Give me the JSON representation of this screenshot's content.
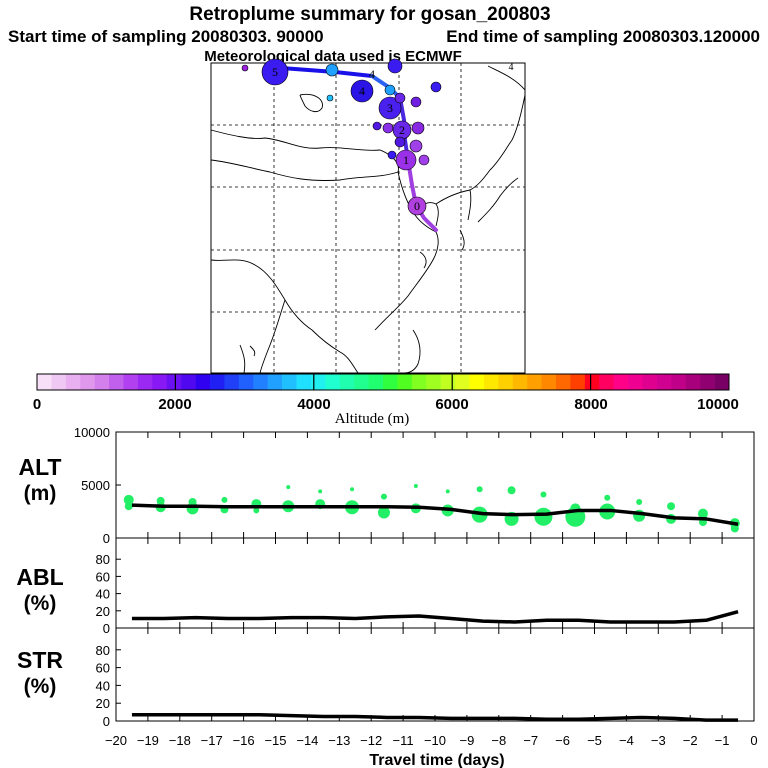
{
  "header": {
    "title": "Retroplume summary for gosan_200803",
    "start_label": "Start time of sampling 20080303. 90000",
    "end_label": "End time of sampling 20080303.120000",
    "met_label": "Meteorological data used is ECMWF"
  },
  "map": {
    "stray_label": "4",
    "plume_points": [
      {
        "label": "5",
        "color": "#3a1cf0"
      },
      {
        "label": "4",
        "color": "#2a14e6"
      },
      {
        "label": "3",
        "color": "#4a20ee"
      },
      {
        "label": "2",
        "color": "#6a28e8"
      },
      {
        "label": "1",
        "color": "#9a30e8"
      },
      {
        "label": "0",
        "color": "#b040e0"
      }
    ]
  },
  "colorbar": {
    "tick_labels": [
      "0",
      "2000",
      "4000",
      "6000",
      "8000",
      "10000"
    ],
    "axis_label": "Altitude (m)",
    "min": 0,
    "max": 10000,
    "colors": [
      "#f8e0f8",
      "#f0c8f4",
      "#e8b0f0",
      "#e098ec",
      "#d480ec",
      "#c060ec",
      "#b040f0",
      "#9c28f4",
      "#8818f4",
      "#6c10f4",
      "#5008f0",
      "#3000f0",
      "#2020f4",
      "#2040f8",
      "#2060fc",
      "#2080ff",
      "#20a0ff",
      "#20c0ff",
      "#20e0ff",
      "#20f0f0",
      "#20ffd0",
      "#20ffb0",
      "#20ff90",
      "#20ff70",
      "#30ff40",
      "#50ff20",
      "#80ff20",
      "#a0ff20",
      "#c0ff20",
      "#e0ff20",
      "#ffff00",
      "#ffe800",
      "#ffd000",
      "#ffb800",
      "#ffa000",
      "#ff8800",
      "#ff6800",
      "#ff4000",
      "#ff0020",
      "#ff0060",
      "#ff0088",
      "#f00090",
      "#e00090",
      "#d00090",
      "#c00088",
      "#a8007c",
      "#900070",
      "#780064"
    ]
  },
  "chart_data": [
    {
      "type": "line",
      "panel": "ALT",
      "ylabel": "ALT\n(m)",
      "ylim": [
        0,
        10000
      ],
      "yticks": [
        "0",
        "5000",
        "10000"
      ],
      "xlabel": "Travel time (days)",
      "xlim": [
        -20,
        0
      ],
      "x": [
        -19.5,
        -18.5,
        -17.5,
        -16.5,
        -15.5,
        -14.5,
        -13.5,
        -12.5,
        -11.5,
        -10.5,
        -9.5,
        -8.5,
        -7.5,
        -6.5,
        -5.5,
        -4.5,
        -3.5,
        -2.5,
        -1.5,
        -0.5
      ],
      "series": [
        {
          "name": "ALT",
          "values": [
            3100,
            3000,
            3000,
            2950,
            2950,
            2950,
            2950,
            2950,
            2950,
            2900,
            2700,
            2300,
            2200,
            2250,
            2600,
            2600,
            2300,
            1900,
            1800,
            1300
          ]
        }
      ],
      "scatter": {
        "color": "#22ee66",
        "points": [
          [
            -19.6,
            3600,
            5
          ],
          [
            -19.6,
            3000,
            4
          ],
          [
            -18.6,
            3500,
            4
          ],
          [
            -18.6,
            2900,
            5
          ],
          [
            -17.6,
            3400,
            4
          ],
          [
            -17.6,
            2800,
            6
          ],
          [
            -16.6,
            3600,
            3
          ],
          [
            -16.6,
            2700,
            4
          ],
          [
            -15.6,
            3200,
            5
          ],
          [
            -15.6,
            2600,
            3
          ],
          [
            -14.6,
            4800,
            2
          ],
          [
            -14.6,
            3000,
            6
          ],
          [
            -13.6,
            4400,
            2
          ],
          [
            -13.6,
            3200,
            5
          ],
          [
            -12.6,
            4600,
            2
          ],
          [
            -12.6,
            2900,
            7
          ],
          [
            -11.6,
            3900,
            3
          ],
          [
            -11.6,
            2400,
            6
          ],
          [
            -10.6,
            4900,
            2
          ],
          [
            -10.6,
            2800,
            5
          ],
          [
            -9.6,
            4400,
            2
          ],
          [
            -9.6,
            2600,
            6
          ],
          [
            -8.6,
            4600,
            3
          ],
          [
            -8.6,
            2200,
            8
          ],
          [
            -7.6,
            4500,
            4
          ],
          [
            -7.6,
            1800,
            7
          ],
          [
            -6.6,
            4100,
            3
          ],
          [
            -6.6,
            2000,
            9
          ],
          [
            -5.6,
            2800,
            5
          ],
          [
            -5.6,
            2000,
            10
          ],
          [
            -4.6,
            3800,
            3
          ],
          [
            -4.6,
            2500,
            8
          ],
          [
            -3.6,
            3400,
            3
          ],
          [
            -3.6,
            2100,
            6
          ],
          [
            -2.6,
            3000,
            4
          ],
          [
            -2.6,
            1800,
            5
          ],
          [
            -1.6,
            2300,
            5
          ],
          [
            -1.6,
            1500,
            4
          ],
          [
            -0.6,
            1400,
            5
          ],
          [
            -0.6,
            900,
            4
          ]
        ]
      }
    },
    {
      "type": "line",
      "panel": "ABL",
      "ylabel": "ABL\n(%)",
      "ylim": [
        0,
        100
      ],
      "yticks": [
        "0",
        "20",
        "40",
        "60",
        "80"
      ],
      "x": [
        -19.5,
        -18.5,
        -17.5,
        -16.5,
        -15.5,
        -14.5,
        -13.5,
        -12.5,
        -11.5,
        -10.5,
        -9.5,
        -8.5,
        -7.5,
        -6.5,
        -5.5,
        -4.5,
        -3.5,
        -2.5,
        -1.5,
        -0.5
      ],
      "series": [
        {
          "name": "ABL",
          "values": [
            11,
            11,
            12,
            11,
            11,
            12,
            12,
            11,
            13,
            14,
            11,
            8,
            7,
            9,
            9,
            7,
            7,
            7,
            9,
            19
          ]
        }
      ]
    },
    {
      "type": "line",
      "panel": "STR",
      "ylabel": "STR\n(%)",
      "ylim": [
        0,
        100
      ],
      "yticks": [
        "0",
        "20",
        "40",
        "60",
        "80"
      ],
      "xticks": [
        "−20",
        "−19",
        "−18",
        "−17",
        "−16",
        "−15",
        "−14",
        "−13",
        "−12",
        "−11",
        "−10",
        "−9",
        "−8",
        "−7",
        "−6",
        "−5",
        "−4",
        "−3",
        "−2",
        "−1",
        "0"
      ],
      "x": [
        -19.5,
        -18.5,
        -17.5,
        -16.5,
        -15.5,
        -14.5,
        -13.5,
        -12.5,
        -11.5,
        -10.5,
        -9.5,
        -8.5,
        -7.5,
        -6.5,
        -5.5,
        -4.5,
        -3.5,
        -2.5,
        -1.5,
        -0.5
      ],
      "series": [
        {
          "name": "STR",
          "values": [
            7,
            7,
            7,
            7,
            7,
            6,
            5,
            5,
            4,
            4,
            3,
            3,
            3,
            2,
            2,
            3,
            4,
            3,
            1,
            1
          ]
        }
      ]
    }
  ]
}
